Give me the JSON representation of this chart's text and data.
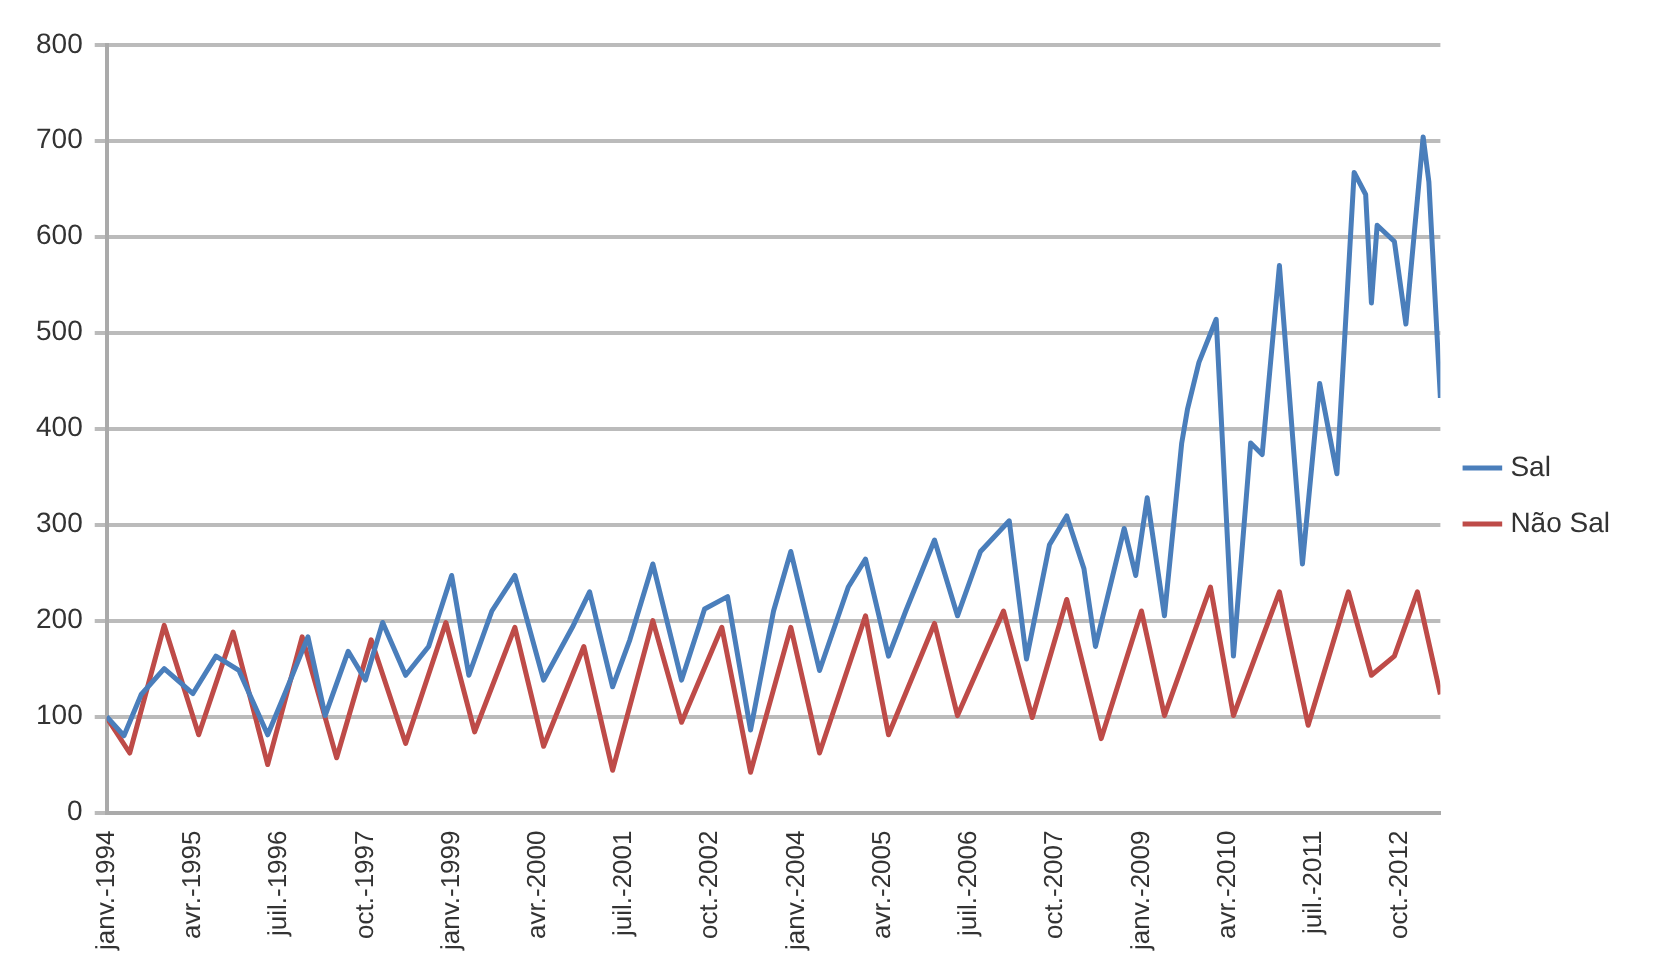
{
  "chart_data": {
    "type": "line",
    "xlim": [
      "1994-01",
      "2013-05"
    ],
    "xticks": [
      {
        "value": "1994-01",
        "label": "janv.-1994"
      },
      {
        "value": "1995-04",
        "label": "avr.-1995"
      },
      {
        "value": "1996-07",
        "label": "juil.-1996"
      },
      {
        "value": "1997-10",
        "label": "oct.-1997"
      },
      {
        "value": "1999-01",
        "label": "janv.-1999"
      },
      {
        "value": "2000-04",
        "label": "avr.-2000"
      },
      {
        "value": "2001-07",
        "label": "juil.-2001"
      },
      {
        "value": "2002-10",
        "label": "oct.-2002"
      },
      {
        "value": "2004-01",
        "label": "janv.-2004"
      },
      {
        "value": "2005-04",
        "label": "avr.-2005"
      },
      {
        "value": "2006-07",
        "label": "juil.-2006"
      },
      {
        "value": "2007-10",
        "label": "oct.-2007"
      },
      {
        "value": "2009-01",
        "label": "janv.-2009"
      },
      {
        "value": "2010-04",
        "label": "avr.-2010"
      },
      {
        "value": "2011-07",
        "label": "juil.-2011"
      },
      {
        "value": "2012-10",
        "label": "oct.-2012"
      }
    ],
    "ylim": [
      0,
      800
    ],
    "yticks": [
      0,
      100,
      200,
      300,
      400,
      500,
      600,
      700,
      800
    ],
    "grid": "y",
    "legend": "right",
    "marker": "none",
    "line_style": "solid",
    "series": [
      {
        "name": "Sal",
        "color": "#4a7ebb",
        "x": [
          "1994-01",
          "1994-04",
          "1994-07",
          "1994-11",
          "1995-04",
          "1995-08",
          "1995-12",
          "1996-05",
          "1996-08",
          "1996-12",
          "1997-03",
          "1997-07",
          "1997-10",
          "1998-01",
          "1998-05",
          "1998-09",
          "1999-01",
          "1999-04",
          "1999-08",
          "1999-12",
          "2000-05",
          "2000-10",
          "2001-01",
          "2001-05",
          "2001-08",
          "2001-12",
          "2002-05",
          "2002-09",
          "2003-01",
          "2003-05",
          "2003-09",
          "2003-12",
          "2004-05",
          "2004-10",
          "2005-01",
          "2005-05",
          "2005-08",
          "2006-01",
          "2006-05",
          "2006-09",
          "2007-02",
          "2007-05",
          "2007-09",
          "2007-12",
          "2008-03",
          "2008-05",
          "2008-10",
          "2008-12",
          "2009-02",
          "2009-05",
          "2009-08",
          "2009-09",
          "2009-11",
          "2010-02",
          "2010-05",
          "2010-08",
          "2010-10",
          "2011-01",
          "2011-05",
          "2011-08",
          "2011-11",
          "2012-02",
          "2012-04",
          "2012-05",
          "2012-06",
          "2012-09",
          "2012-11",
          "2013-02",
          "2013-03",
          "2013-05"
        ],
        "values": [
          100,
          80,
          123,
          150,
          124,
          163,
          148,
          81,
          124,
          183,
          101,
          168,
          138,
          198,
          143,
          173,
          247,
          143,
          210,
          247,
          138,
          193,
          230,
          131,
          180,
          259,
          138,
          212,
          225,
          86,
          210,
          272,
          148,
          235,
          264,
          163,
          210,
          284,
          205,
          272,
          304,
          160,
          279,
          309,
          254,
          173,
          296,
          247,
          328,
          205,
          385,
          420,
          469,
          514,
          163,
          385,
          373,
          570,
          259,
          447,
          353,
          667,
          644,
          531,
          612,
          595,
          509,
          704,
          657,
          432
        ]
      },
      {
        "name": "Não Sal",
        "color": "#be4b48",
        "x": [
          "1994-01",
          "1994-05",
          "1994-11",
          "1995-05",
          "1995-11",
          "1996-05",
          "1996-11",
          "1997-05",
          "1997-11",
          "1998-05",
          "1998-12",
          "1999-05",
          "1999-12",
          "2000-05",
          "2000-12",
          "2001-05",
          "2001-12",
          "2002-05",
          "2002-12",
          "2003-05",
          "2003-12",
          "2004-05",
          "2005-01",
          "2005-05",
          "2006-01",
          "2006-05",
          "2007-01",
          "2007-06",
          "2007-12",
          "2008-06",
          "2009-01",
          "2009-05",
          "2010-01",
          "2010-05",
          "2011-01",
          "2011-06",
          "2012-01",
          "2012-05",
          "2012-09",
          "2013-01",
          "2013-05"
        ],
        "values": [
          99,
          62,
          195,
          81,
          188,
          50,
          183,
          57,
          180,
          72,
          198,
          84,
          193,
          69,
          173,
          44,
          200,
          94,
          193,
          42,
          193,
          62,
          205,
          81,
          197,
          101,
          210,
          99,
          222,
          77,
          210,
          101,
          235,
          101,
          230,
          91,
          230,
          143,
          163,
          230,
          123
        ]
      }
    ]
  }
}
